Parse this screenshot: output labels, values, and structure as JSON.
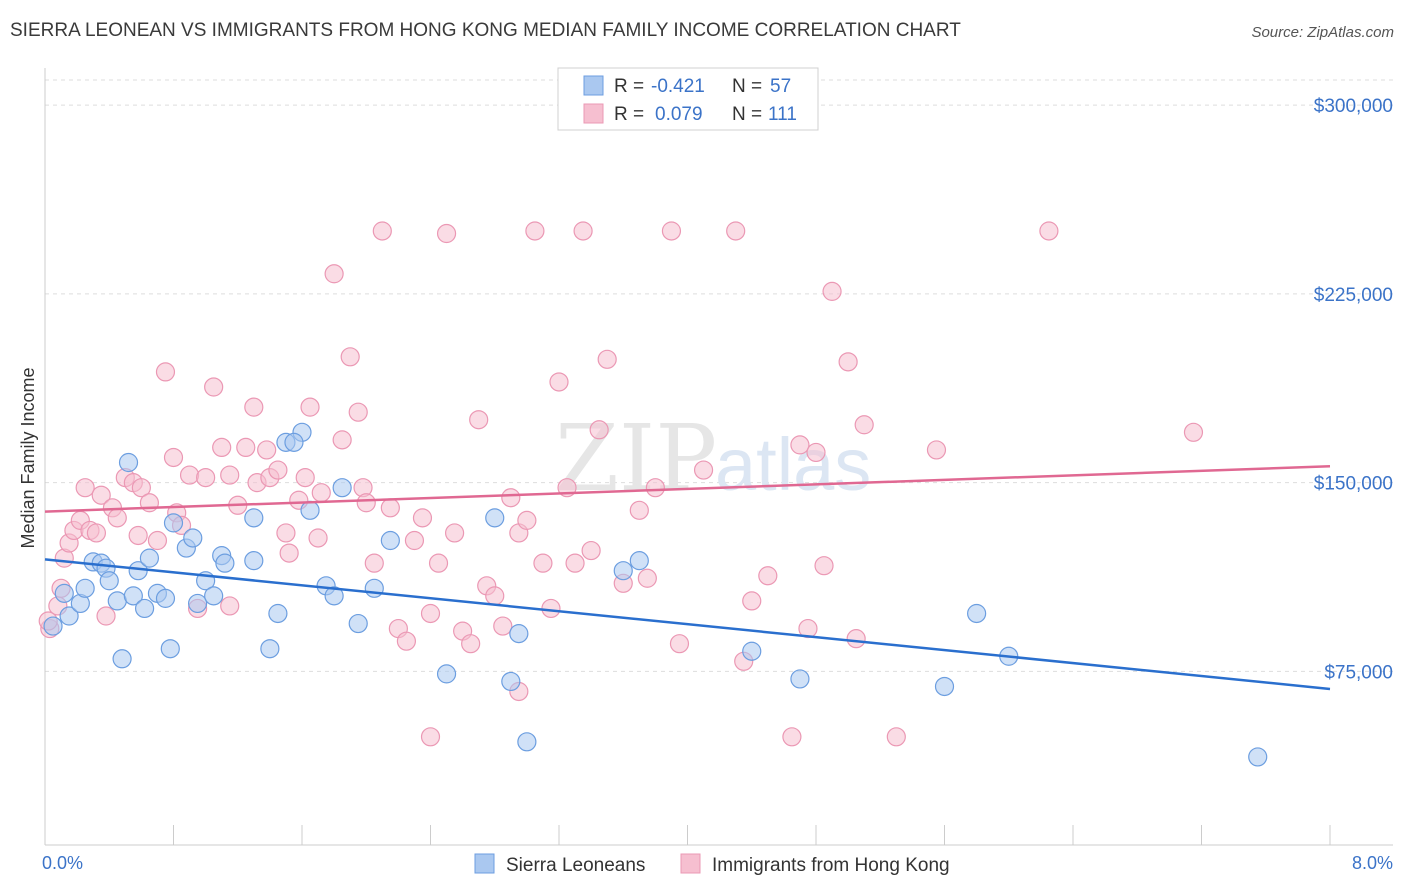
{
  "title": "SIERRA LEONEAN VS IMMIGRANTS FROM HONG KONG MEDIAN FAMILY INCOME CORRELATION CHART",
  "source": "Source: ZipAtlas.com",
  "watermark": {
    "zip": "ZIP",
    "atlas": "atlas"
  },
  "colors": {
    "blue_fill": "#aac8f0",
    "blue_stroke": "#6c9ee0",
    "blue_line": "#2a6fce",
    "pink_fill": "#f6bfd0",
    "pink_stroke": "#eb98b4",
    "pink_line": "#e06892",
    "tick_text": "#3b73c8"
  },
  "legend": {
    "rows": [
      {
        "r_label": "R =",
        "r_value": "-0.421",
        "n_label": "N =",
        "n_value": "57"
      },
      {
        "r_label": "R =",
        "r_value": "0.079",
        "n_label": "N =",
        "n_value": "111"
      }
    ]
  },
  "bottom_legend": [
    "Sierra Leoneans",
    "Immigrants from Hong Kong"
  ],
  "chart_data": {
    "type": "scatter",
    "title": "SIERRA LEONEAN VS IMMIGRANTS FROM HONG KONG MEDIAN FAMILY INCOME CORRELATION CHART",
    "xlabel": "",
    "ylabel": "Median Family Income",
    "x_tick_labels": [
      "0.0%",
      "8.0%"
    ],
    "y_tick_labels": [
      "$75,000",
      "$150,000",
      "$225,000",
      "$300,000"
    ],
    "y_ticks": [
      75000,
      150000,
      225000,
      300000
    ],
    "xlim": [
      0,
      8.0
    ],
    "ylim": [
      6000,
      310000
    ],
    "grid": true,
    "legend_position": "top-center",
    "series": [
      {
        "name": "Sierra Leoneans",
        "r": -0.421,
        "n": 57,
        "trend": {
          "x": [
            0,
            8.0
          ],
          "y": [
            119500,
            68000
          ]
        },
        "points": [
          [
            0.05,
            93000
          ],
          [
            0.12,
            106000
          ],
          [
            0.15,
            97000
          ],
          [
            0.22,
            102000
          ],
          [
            0.25,
            108000
          ],
          [
            0.3,
            118500
          ],
          [
            0.35,
            118000
          ],
          [
            0.38,
            116000
          ],
          [
            0.4,
            111000
          ],
          [
            0.45,
            103000
          ],
          [
            0.48,
            80000
          ],
          [
            0.52,
            158000
          ],
          [
            0.55,
            105000
          ],
          [
            0.58,
            115000
          ],
          [
            0.62,
            100000
          ],
          [
            0.65,
            120000
          ],
          [
            0.7,
            106000
          ],
          [
            0.75,
            104000
          ],
          [
            0.78,
            84000
          ],
          [
            0.8,
            134000
          ],
          [
            0.88,
            124000
          ],
          [
            0.92,
            128000
          ],
          [
            0.95,
            102000
          ],
          [
            1.0,
            111000
          ],
          [
            1.05,
            105000
          ],
          [
            1.1,
            121000
          ],
          [
            1.12,
            118000
          ],
          [
            1.3,
            136000
          ],
          [
            1.3,
            119000
          ],
          [
            1.45,
            98000
          ],
          [
            1.4,
            84000
          ],
          [
            1.5,
            166000
          ],
          [
            1.6,
            170000
          ],
          [
            1.55,
            166000
          ],
          [
            1.65,
            139000
          ],
          [
            1.75,
            109000
          ],
          [
            1.8,
            105000
          ],
          [
            1.85,
            148000
          ],
          [
            1.95,
            94000
          ],
          [
            2.05,
            108000
          ],
          [
            2.15,
            127000
          ],
          [
            2.5,
            74000
          ],
          [
            2.8,
            136000
          ],
          [
            2.9,
            71000
          ],
          [
            2.95,
            90000
          ],
          [
            3.0,
            47000
          ],
          [
            3.6,
            115000
          ],
          [
            3.7,
            119000
          ],
          [
            4.4,
            83000
          ],
          [
            4.7,
            72000
          ],
          [
            5.6,
            69000
          ],
          [
            5.8,
            98000
          ],
          [
            6.0,
            81000
          ],
          [
            7.55,
            41000
          ]
        ]
      },
      {
        "name": "Immigrants from Hong Kong",
        "r": 0.079,
        "n": 111,
        "trend": {
          "x": [
            0,
            8.0
          ],
          "y": [
            138500,
            156500
          ]
        },
        "points": [
          [
            0.03,
            92000
          ],
          [
            0.08,
            101000
          ],
          [
            0.1,
            108000
          ],
          [
            0.12,
            120000
          ],
          [
            0.15,
            126000
          ],
          [
            0.18,
            131000
          ],
          [
            0.22,
            135000
          ],
          [
            0.25,
            148000
          ],
          [
            0.28,
            131000
          ],
          [
            0.32,
            130000
          ],
          [
            0.35,
            145000
          ],
          [
            0.38,
            97000
          ],
          [
            0.42,
            140000
          ],
          [
            0.45,
            136000
          ],
          [
            0.5,
            152000
          ],
          [
            0.55,
            150000
          ],
          [
            0.58,
            129000
          ],
          [
            0.6,
            148000
          ],
          [
            0.65,
            142000
          ],
          [
            0.7,
            127000
          ],
          [
            0.75,
            194000
          ],
          [
            0.8,
            160000
          ],
          [
            0.82,
            138000
          ],
          [
            0.85,
            133000
          ],
          [
            0.9,
            153000
          ],
          [
            0.95,
            100000
          ],
          [
            1.0,
            152000
          ],
          [
            1.05,
            188000
          ],
          [
            1.1,
            164000
          ],
          [
            1.15,
            153000
          ],
          [
            1.2,
            141000
          ],
          [
            1.25,
            164000
          ],
          [
            1.3,
            180000
          ],
          [
            1.32,
            150000
          ],
          [
            1.38,
            163000
          ],
          [
            1.4,
            152000
          ],
          [
            1.45,
            155000
          ],
          [
            1.5,
            130000
          ],
          [
            1.52,
            122000
          ],
          [
            1.58,
            143000
          ],
          [
            1.62,
            152000
          ],
          [
            1.65,
            180000
          ],
          [
            1.7,
            128000
          ],
          [
            1.72,
            146000
          ],
          [
            1.8,
            233000
          ],
          [
            1.85,
            167000
          ],
          [
            1.9,
            200000
          ],
          [
            1.95,
            178000
          ],
          [
            1.98,
            148000
          ],
          [
            2.0,
            142000
          ],
          [
            2.05,
            118000
          ],
          [
            2.1,
            250000
          ],
          [
            2.15,
            140000
          ],
          [
            2.2,
            92000
          ],
          [
            2.25,
            87000
          ],
          [
            2.3,
            127000
          ],
          [
            2.35,
            136000
          ],
          [
            2.4,
            98000
          ],
          [
            2.45,
            118000
          ],
          [
            2.5,
            249000
          ],
          [
            2.55,
            130000
          ],
          [
            2.6,
            91000
          ],
          [
            2.65,
            86000
          ],
          [
            2.7,
            175000
          ],
          [
            2.75,
            109000
          ],
          [
            2.8,
            105000
          ],
          [
            2.85,
            93000
          ],
          [
            2.9,
            144000
          ],
          [
            2.95,
            130000
          ],
          [
            3.0,
            135000
          ],
          [
            3.05,
            250000
          ],
          [
            3.1,
            118000
          ],
          [
            3.15,
            100000
          ],
          [
            3.2,
            190000
          ],
          [
            3.25,
            148000
          ],
          [
            3.3,
            118000
          ],
          [
            3.35,
            250000
          ],
          [
            3.4,
            123000
          ],
          [
            3.45,
            171000
          ],
          [
            3.5,
            199000
          ],
          [
            3.6,
            110000
          ],
          [
            3.7,
            139000
          ],
          [
            3.75,
            112000
          ],
          [
            3.8,
            148000
          ],
          [
            3.9,
            250000
          ],
          [
            3.95,
            86000
          ],
          [
            4.1,
            155000
          ],
          [
            4.3,
            250000
          ],
          [
            4.35,
            79000
          ],
          [
            4.4,
            103000
          ],
          [
            4.5,
            113000
          ],
          [
            4.7,
            165000
          ],
          [
            4.75,
            92000
          ],
          [
            4.8,
            162000
          ],
          [
            4.85,
            117000
          ],
          [
            4.9,
            226000
          ],
          [
            5.0,
            198000
          ],
          [
            5.1,
            173000
          ],
          [
            5.3,
            49000
          ],
          [
            5.55,
            163000
          ],
          [
            6.25,
            250000
          ],
          [
            7.15,
            170000
          ],
          [
            2.4,
            49000
          ],
          [
            2.95,
            67000
          ],
          [
            4.65,
            49000
          ],
          [
            5.05,
            88000
          ],
          [
            1.15,
            101000
          ],
          [
            0.02,
            95000
          ]
        ]
      }
    ]
  }
}
